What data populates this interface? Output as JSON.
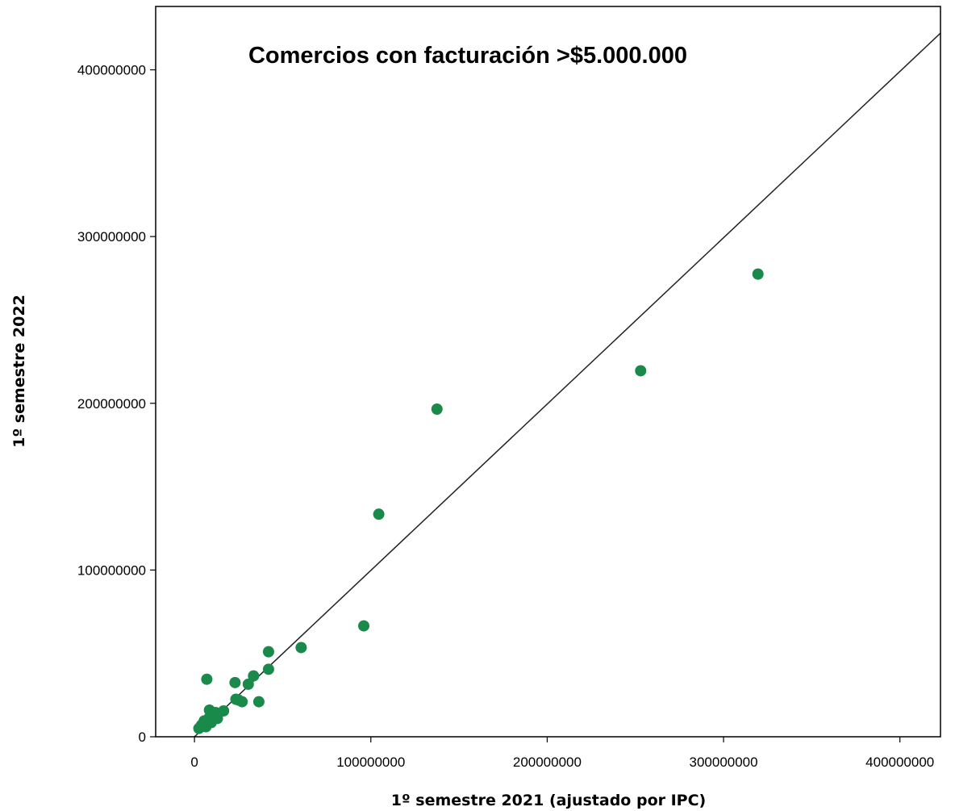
{
  "chart_data": {
    "type": "scatter",
    "title": "Comercios con facturación >$5.000.000",
    "xlabel": "1º semestre 2021 (ajustado por IPC)",
    "ylabel": "1º semestre 2022",
    "xlim": [
      -22000000,
      423000000
    ],
    "ylim": [
      0,
      438000000
    ],
    "x_ticks": [
      0,
      100000000,
      200000000,
      300000000,
      400000000
    ],
    "x_tick_labels": [
      "0",
      "100000000",
      "200000000",
      "300000000",
      "400000000"
    ],
    "y_ticks": [
      0,
      100000000,
      200000000,
      300000000,
      400000000
    ],
    "y_tick_labels": [
      "0",
      "100000000",
      "200000000",
      "300000000",
      "400000000"
    ],
    "grid": false,
    "point_color": "#1a8a4a",
    "line_color": "#222222",
    "fit_line": {
      "x": [
        0,
        423000000
      ],
      "y": [
        0,
        422000000
      ]
    },
    "points": [
      {
        "x": 2500000,
        "y": 5000000
      },
      {
        "x": 4000000,
        "y": 7000000
      },
      {
        "x": 5500000,
        "y": 9500000
      },
      {
        "x": 6500000,
        "y": 6000000
      },
      {
        "x": 7000000,
        "y": 34500000
      },
      {
        "x": 8000000,
        "y": 11000000
      },
      {
        "x": 8500000,
        "y": 16000000
      },
      {
        "x": 9500000,
        "y": 8500000
      },
      {
        "x": 10500000,
        "y": 12500000
      },
      {
        "x": 12000000,
        "y": 14500000
      },
      {
        "x": 13000000,
        "y": 11000000
      },
      {
        "x": 16500000,
        "y": 15500000
      },
      {
        "x": 23000000,
        "y": 32500000
      },
      {
        "x": 23500000,
        "y": 22500000
      },
      {
        "x": 25000000,
        "y": 22000000
      },
      {
        "x": 27000000,
        "y": 21000000
      },
      {
        "x": 30500000,
        "y": 31500000
      },
      {
        "x": 33500000,
        "y": 36500000
      },
      {
        "x": 36500000,
        "y": 21000000
      },
      {
        "x": 42000000,
        "y": 51000000
      },
      {
        "x": 42000000,
        "y": 40500000
      },
      {
        "x": 60500000,
        "y": 53500000
      },
      {
        "x": 96000000,
        "y": 66500000
      },
      {
        "x": 104500000,
        "y": 133500000
      },
      {
        "x": 137500000,
        "y": 196500000
      },
      {
        "x": 253000000,
        "y": 219500000
      },
      {
        "x": 319500000,
        "y": 277500000
      }
    ]
  }
}
